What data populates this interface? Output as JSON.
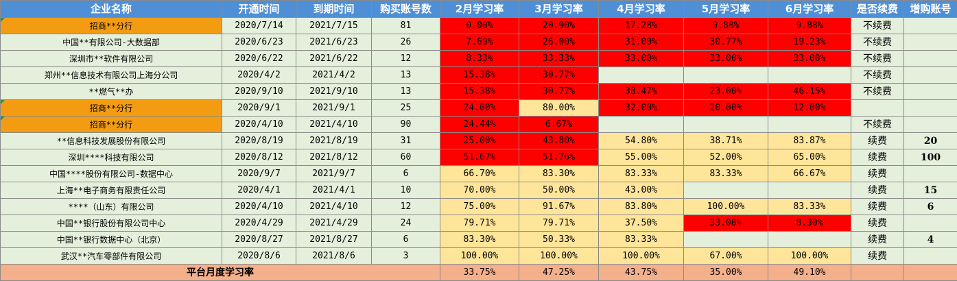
{
  "headers": [
    "企业名称",
    "开通时间",
    "到期时间",
    "购买账号数",
    "2月学习率",
    "3月学习率",
    "4月学习率",
    "5月学习率",
    "6月学习率",
    "是否续费",
    "增购账号"
  ],
  "rows": [
    {
      "name": "招商**分行",
      "start": "2020/7/14",
      "end": "2021/7/15",
      "accounts": "81",
      "m2": "0.00%",
      "m3": "20.90%",
      "m4": "17.28%",
      "m5": "9.88%",
      "m6": "9.88%",
      "renew": "不续费",
      "add": ""
    },
    {
      "name": "中国**有限公司-大数据部",
      "start": "2020/6/23",
      "end": "2021/6/23",
      "accounts": "26",
      "m2": "7.69%",
      "m3": "26.00%",
      "m4": "31.00%",
      "m5": "30.77%",
      "m6": "19.23%",
      "renew": "不续费",
      "add": ""
    },
    {
      "name": "深圳市**软件有限公司",
      "start": "2020/6/22",
      "end": "2021/6/22",
      "accounts": "12",
      "m2": "8.33%",
      "m3": "33.33%",
      "m4": "33.00%",
      "m5": "33.00%",
      "m6": "33.00%",
      "renew": "不续费",
      "add": ""
    },
    {
      "name": "郑州**信息技术有限公司上海分公司",
      "start": "2020/4/2",
      "end": "2021/4/2",
      "accounts": "13",
      "m2": "15.38%",
      "m3": "30.77%",
      "m4": "",
      "m5": "",
      "m6": "",
      "renew": "不续费",
      "add": ""
    },
    {
      "name": "**燃气**办",
      "start": "2020/9/10",
      "end": "2021/9/10",
      "accounts": "13",
      "m2": "15.38%",
      "m3": "30.77%",
      "m4": "38.47%",
      "m5": "23.00%",
      "m6": "46.15%",
      "renew": "不续费",
      "add": ""
    },
    {
      "name": "招商**分行",
      "start": "2020/9/1",
      "end": "2021/9/1",
      "accounts": "25",
      "m2": "24.00%",
      "m3": "80.00%",
      "m4": "32.00%",
      "m5": "20.00%",
      "m6": "12.00%",
      "renew": "",
      "add": ""
    },
    {
      "name": "招商**分行",
      "start": "2020/4/10",
      "end": "2021/4/10",
      "accounts": "90",
      "m2": "24.44%",
      "m3": "6.67%",
      "m4": "",
      "m5": "",
      "m6": "",
      "renew": "不续费",
      "add": ""
    },
    {
      "name": "**信息科技发展股份有限公司",
      "start": "2020/8/19",
      "end": "2021/8/19",
      "accounts": "31",
      "m2": "25.00%",
      "m3": "43.80%",
      "m4": "54.80%",
      "m5": "38.71%",
      "m6": "83.87%",
      "renew": "续费",
      "add": "20"
    },
    {
      "name": "深圳****科技有限公司",
      "start": "2020/8/12",
      "end": "2021/8/12",
      "accounts": "60",
      "m2": "51.67%",
      "m3": "51.76%",
      "m4": "55.00%",
      "m5": "52.00%",
      "m6": "65.00%",
      "renew": "续费",
      "add": "100"
    },
    {
      "name": "中国****股份有限公司-数据中心",
      "start": "2020/9/7",
      "end": "2021/9/7",
      "accounts": "6",
      "m2": "66.70%",
      "m3": "83.30%",
      "m4": "83.33%",
      "m5": "83.33%",
      "m6": "66.67%",
      "renew": "续费",
      "add": ""
    },
    {
      "name": "上海**电子商务有限责任公司",
      "start": "2020/4/1",
      "end": "2021/4/1",
      "accounts": "10",
      "m2": "70.00%",
      "m3": "50.00%",
      "m4": "43.00%",
      "m5": "",
      "m6": "",
      "renew": "续费",
      "add": "15"
    },
    {
      "name": "****（山东）有限公司",
      "start": "2020/4/10",
      "end": "2021/4/10",
      "accounts": "12",
      "m2": "75.00%",
      "m3": "91.67%",
      "m4": "83.80%",
      "m5": "100.00%",
      "m6": "83.33%",
      "renew": "续费",
      "add": "6"
    },
    {
      "name": "中国**银行股份有限公司中心",
      "start": "2020/4/29",
      "end": "2021/4/29",
      "accounts": "24",
      "m2": "79.71%",
      "m3": "79.71%",
      "m4": "37.50%",
      "m5": "33.00%",
      "m6": "8.30%",
      "renew": "续费",
      "add": ""
    },
    {
      "name": "中国**银行数据中心（北京）",
      "start": "2020/8/27",
      "end": "2021/8/27",
      "accounts": "6",
      "m2": "83.30%",
      "m3": "50.33%",
      "m4": "83.33%",
      "m5": "",
      "m6": "",
      "renew": "续费",
      "add": "4"
    },
    {
      "name": "武汉**汽车零部件有限公司",
      "start": "2020/8/6",
      "end": "2021/8/6",
      "accounts": "3",
      "m2": "100.00%",
      "m3": "100.00%",
      "m4": "100.00%",
      "m5": "67.00%",
      "m6": "100.00%",
      "renew": "续费",
      "add": ""
    }
  ],
  "footer": {
    "label": "平台月度学习率",
    "m2": "33.75%",
    "m3": "47.25%",
    "m4": "43.75%",
    "m5": "35.00%",
    "m6": "49.10%"
  },
  "colors": {
    "header": "#4f8fd6",
    "highlight_orange": "#f39c12",
    "low_rate_red": "#ff0000",
    "rate_yellow": "#ffe59a",
    "default_green": "#e4efdc",
    "footer_peach": "#f4b08a"
  }
}
